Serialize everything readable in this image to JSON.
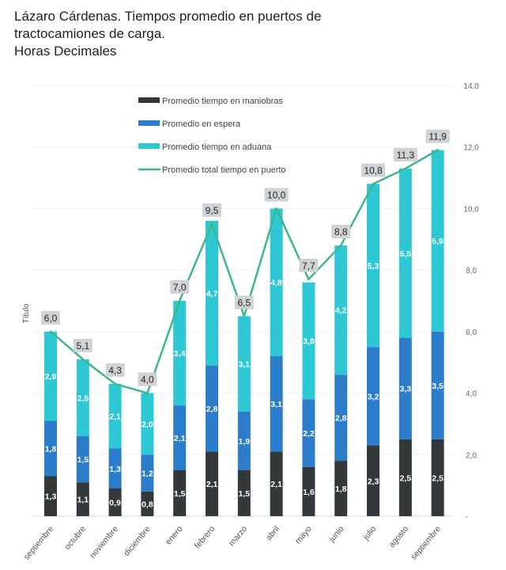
{
  "header": {
    "title_line1": "Lázaro Cárdenas. Tiempos promedio en puertos de",
    "title_line2": "tractocamiones de carga.",
    "title_line3": "Horas Decimales"
  },
  "chart_data": {
    "type": "bar",
    "stacked": true,
    "title": "Lázaro Cárdenas. Tiempos promedio en puertos de tractocamiones de carga. Horas Decimales",
    "xlabel": "",
    "ylabel": "Título",
    "ylim": [
      0,
      14
    ],
    "yticks": [
      0,
      2,
      4,
      6,
      8,
      10,
      12,
      14
    ],
    "ytick_labels": [
      "-",
      "2,0",
      "4,0",
      "6,0",
      "8,0",
      "10,0",
      "12,0",
      "14,0"
    ],
    "y_axis_position": "right",
    "grid": true,
    "legend_position": "top-center",
    "categories": [
      "septiembre",
      "octubre",
      "noviembre",
      "diciembre",
      "enero",
      "febrero",
      "marzo",
      "abril",
      "mayo",
      "junio",
      "julio",
      "agosto",
      "septiembre"
    ],
    "series": [
      {
        "name": "Promedio tiempo en maniobras",
        "kind": "bar",
        "color": "#33383b",
        "values": [
          1.3,
          1.1,
          0.9,
          0.8,
          1.5,
          2.1,
          1.5,
          2.1,
          1.6,
          1.8,
          2.3,
          2.5,
          2.5
        ],
        "labels": [
          "1,3",
          "1,1",
          "0,9",
          "0,8",
          "1,5",
          "2,1",
          "1,5",
          "2,1",
          "1,6",
          "1,8",
          "2,3",
          "2,5",
          "2,5"
        ]
      },
      {
        "name": "Promedio en espera",
        "kind": "bar",
        "color": "#2b7cca",
        "values": [
          1.8,
          1.5,
          1.3,
          1.2,
          2.1,
          2.8,
          1.9,
          3.1,
          2.2,
          2.8,
          3.2,
          3.3,
          3.5
        ],
        "labels": [
          "1,8",
          "1,5",
          "1,3",
          "1,2",
          "2,1",
          "2,8",
          "1,9",
          "3,1",
          "2,2",
          "2,8",
          "3,2",
          "3,3",
          "3,5"
        ]
      },
      {
        "name": "Promedio tiempo en aduana",
        "kind": "bar",
        "color": "#2ec8d4",
        "values": [
          2.9,
          2.5,
          2.1,
          2.0,
          3.4,
          4.7,
          3.1,
          4.8,
          3.8,
          4.2,
          5.3,
          5.5,
          5.9
        ],
        "labels": [
          "2,9",
          "2,5",
          "2,1",
          "2,0",
          "3,4",
          "4,7",
          "3,1",
          "4,8",
          "3,8",
          "4,2",
          "5,3",
          "5,5",
          "5,9"
        ]
      },
      {
        "name": "Promedio total tiempo en puerto",
        "kind": "line",
        "color": "#3bb88a",
        "values": [
          6.0,
          5.1,
          4.3,
          4.0,
          7.0,
          9.5,
          6.5,
          10.0,
          7.7,
          8.8,
          10.8,
          11.3,
          11.9
        ],
        "labels": [
          "6,0",
          "5,1",
          "4,3",
          "4,0",
          "7,0",
          "9,5",
          "6,5",
          "10,0",
          "7,7",
          "8,8",
          "10,8",
          "11,3",
          "11,9"
        ]
      }
    ],
    "label_box_color": "#d0d3d6"
  }
}
